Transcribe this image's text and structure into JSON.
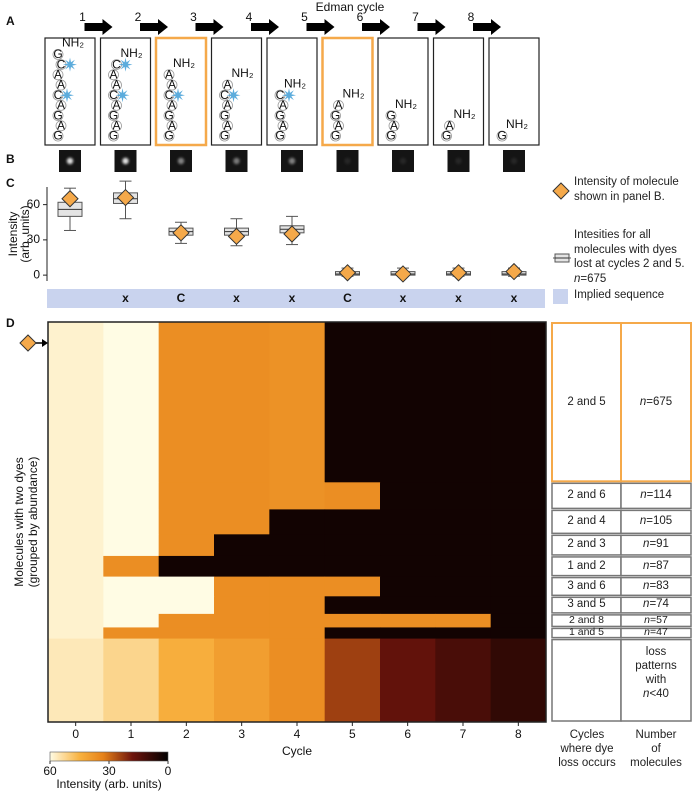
{
  "panel_labels": [
    "A",
    "B",
    "C",
    "D"
  ],
  "panel_a": {
    "title": "Edman cycle",
    "cycles": [
      1,
      2,
      3,
      4,
      5,
      6,
      7,
      8
    ],
    "amine": "NH₂",
    "sequence": [
      "G",
      "C",
      "A",
      "A",
      "C",
      "A",
      "G",
      "A",
      "G"
    ]
  },
  "chart_data": [
    {
      "type": "box",
      "ylabel": [
        "Intensity",
        "(arb. units)"
      ],
      "ylim": [
        -5,
        75
      ],
      "yticks": [
        0,
        30,
        60
      ],
      "min": [
        38,
        48,
        27,
        25,
        26,
        -1,
        -1,
        -1,
        -1
      ],
      "q1": [
        50,
        61,
        34,
        34,
        36,
        0,
        0,
        0,
        0
      ],
      "median": [
        56,
        65,
        37,
        37,
        39,
        1,
        1,
        1,
        1
      ],
      "q3": [
        62,
        70,
        40,
        40,
        42,
        3,
        3,
        3,
        3
      ],
      "max": [
        74,
        80,
        45,
        48,
        50,
        6,
        6,
        6,
        6
      ],
      "box_color": "#e4e4e4",
      "box_name": [
        "Intesities for all",
        "molecules with dyes",
        "lost at cycles 2 and 5.",
        "n=675"
      ],
      "highlight": {
        "name": [
          "Intensity of molecule",
          "shown in panel B."
        ],
        "color": "#f5a94a",
        "values": [
          65,
          66,
          36,
          33,
          35,
          2,
          1,
          2,
          3
        ]
      },
      "implied_sequence": {
        "name": "Implied sequence",
        "color": "#c9d3ee",
        "values": [
          "x",
          "C",
          "x",
          "x",
          "C",
          "x",
          "x",
          "x"
        ]
      }
    },
    {
      "type": "heatmap",
      "xlabel": "Cycle",
      "x": [
        0,
        1,
        2,
        3,
        4,
        5,
        6,
        7,
        8
      ],
      "ylabel": [
        "Molecules with two dyes",
        "(grouped by abundance)"
      ],
      "clim": [
        60,
        0
      ],
      "cticks": [
        60,
        30,
        0
      ],
      "clabel": "Intensity (arb. units)",
      "table_headers": [
        [
          "Cycles",
          "where dye",
          "loss occurs"
        ],
        [
          "Number",
          "of",
          "molecules"
        ]
      ],
      "highlight_color": "#f5a94a",
      "groups": [
        {
          "cycles": "2 and 5",
          "n": 675,
          "n_label": "n=675",
          "values": [
            58,
            64,
            36,
            36,
            37,
            3,
            3,
            3,
            3
          ]
        },
        {
          "cycles": "2 and 6",
          "n": 114,
          "n_label": "n=114",
          "values": [
            58,
            64,
            36,
            36,
            37,
            36,
            3,
            3,
            3
          ]
        },
        {
          "cycles": "2 and 4",
          "n": 105,
          "n_label": "n=105",
          "values": [
            58,
            64,
            36,
            36,
            3,
            3,
            3,
            3,
            3
          ]
        },
        {
          "cycles": "2 and 3",
          "n": 91,
          "n_label": "n=91",
          "values": [
            58,
            64,
            36,
            3,
            3,
            3,
            3,
            3,
            3
          ]
        },
        {
          "cycles": "1 and 2",
          "n": 87,
          "n_label": "n=87",
          "values": [
            58,
            36,
            3,
            3,
            3,
            3,
            3,
            3,
            3
          ]
        },
        {
          "cycles": "3 and 6",
          "n": 83,
          "n_label": "n=83",
          "values": [
            58,
            62,
            62,
            36,
            36,
            36,
            3,
            3,
            3
          ]
        },
        {
          "cycles": "3 and 5",
          "n": 74,
          "n_label": "n=74",
          "values": [
            58,
            62,
            62,
            36,
            36,
            3,
            3,
            3,
            3
          ]
        },
        {
          "cycles": "2 and 8",
          "n": 57,
          "n_label": "n=57",
          "values": [
            58,
            62,
            36,
            36,
            36,
            36,
            36,
            36,
            3
          ]
        },
        {
          "cycles": "1 and 5",
          "n": 47,
          "n_label": "n=47",
          "values": [
            58,
            36,
            36,
            36,
            36,
            3,
            3,
            3,
            3
          ]
        },
        {
          "note": [
            "loss",
            "patterns",
            "with",
            "n<40"
          ],
          "values": [
            56,
            52,
            44,
            40,
            36,
            24,
            16,
            12,
            8
          ]
        }
      ]
    }
  ]
}
